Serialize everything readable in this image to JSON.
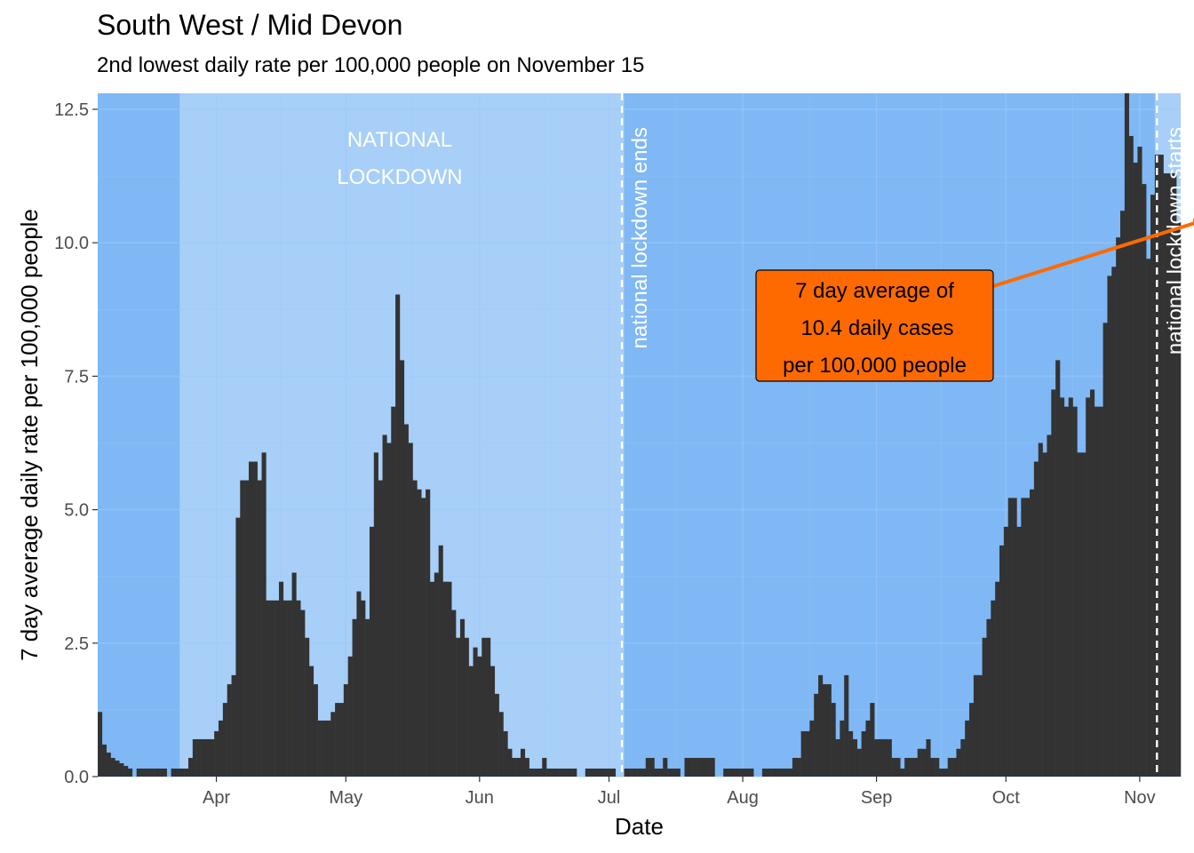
{
  "chart_data": {
    "type": "bar",
    "title": "South West / Mid Devon",
    "subtitle": "2nd lowest daily rate per 100,000 people on November 15",
    "xlabel": "Date",
    "ylabel": "7 day average daily rate per 100,000 people",
    "x_start": "2020-03-05",
    "ylim": [
      0,
      12.8
    ],
    "y_ticks": [
      {
        "value": 0,
        "label": "0.0"
      },
      {
        "value": 2.5,
        "label": "2.5"
      },
      {
        "value": 5,
        "label": "5.0"
      },
      {
        "value": 7.5,
        "label": "7.5"
      },
      {
        "value": 10,
        "label": "10.0"
      },
      {
        "value": 12.5,
        "label": "12.5"
      }
    ],
    "x_ticks": [
      {
        "date": "2020-04-01",
        "label": "Apr"
      },
      {
        "date": "2020-05-01",
        "label": "May"
      },
      {
        "date": "2020-06-01",
        "label": "Jun"
      },
      {
        "date": "2020-07-01",
        "label": "Jul"
      },
      {
        "date": "2020-08-01",
        "label": "Aug"
      },
      {
        "date": "2020-09-01",
        "label": "Sep"
      },
      {
        "date": "2020-10-01",
        "label": "Oct"
      },
      {
        "date": "2020-11-01",
        "label": "Nov"
      }
    ],
    "values": [
      1.21,
      0.6,
      0.45,
      0.35,
      0.3,
      0.25,
      0.2,
      0.15,
      0.0,
      0.15,
      0.15,
      0.15,
      0.15,
      0.15,
      0.15,
      0.15,
      0.0,
      0.15,
      0.15,
      0.15,
      0.15,
      0.35,
      0.7,
      0.7,
      0.7,
      0.7,
      0.7,
      0.85,
      1.05,
      1.38,
      1.73,
      1.9,
      4.85,
      5.55,
      5.55,
      5.9,
      5.9,
      5.55,
      6.07,
      3.3,
      3.3,
      3.3,
      3.65,
      3.3,
      3.3,
      3.82,
      3.3,
      3.12,
      2.6,
      2.07,
      1.73,
      1.05,
      1.05,
      1.05,
      1.21,
      1.38,
      1.38,
      1.73,
      2.25,
      2.95,
      3.47,
      3.3,
      2.95,
      4.68,
      6.07,
      5.55,
      6.4,
      6.25,
      6.93,
      9.03,
      7.8,
      6.6,
      6.25,
      5.55,
      5.38,
      5.22,
      5.38,
      3.65,
      3.82,
      4.33,
      3.65,
      3.65,
      3.12,
      2.6,
      2.95,
      2.6,
      2.07,
      2.42,
      2.25,
      2.6,
      2.6,
      2.07,
      1.55,
      1.21,
      0.85,
      0.52,
      0.35,
      0.35,
      0.52,
      0.35,
      0.15,
      0.15,
      0.15,
      0.35,
      0.15,
      0.15,
      0.15,
      0.15,
      0.15,
      0.15,
      0.15,
      0.0,
      0.0,
      0.15,
      0.15,
      0.15,
      0.15,
      0.15,
      0.15,
      0.15,
      0.0,
      0.0,
      0.15,
      0.15,
      0.15,
      0.15,
      0.15,
      0.35,
      0.35,
      0.15,
      0.15,
      0.35,
      0.15,
      0.15,
      0.15,
      0.0,
      0.35,
      0.35,
      0.35,
      0.35,
      0.35,
      0.35,
      0.35,
      0.0,
      0.0,
      0.15,
      0.15,
      0.15,
      0.15,
      0.15,
      0.15,
      0.15,
      0.0,
      0.0,
      0.15,
      0.15,
      0.15,
      0.15,
      0.15,
      0.15,
      0.15,
      0.35,
      0.35,
      0.85,
      0.85,
      1.05,
      1.55,
      1.9,
      1.73,
      1.73,
      1.38,
      0.7,
      1.05,
      1.9,
      0.85,
      0.7,
      0.52,
      0.85,
      1.05,
      1.38,
      0.7,
      0.7,
      0.7,
      0.7,
      0.35,
      0.35,
      0.15,
      0.35,
      0.35,
      0.35,
      0.52,
      0.52,
      0.7,
      0.35,
      0.35,
      0.15,
      0.15,
      0.35,
      0.35,
      0.52,
      0.7,
      1.05,
      1.38,
      1.9,
      1.9,
      2.6,
      2.95,
      3.3,
      3.65,
      4.33,
      4.68,
      5.22,
      5.22,
      4.68,
      5.22,
      5.22,
      5.38,
      5.9,
      6.25,
      6.07,
      6.4,
      7.25,
      7.8,
      7.1,
      6.93,
      7.1,
      6.93,
      6.07,
      6.07,
      7.1,
      7.25,
      6.93,
      6.93,
      8.5,
      9.38,
      9.55,
      10.1,
      10.6,
      12.9,
      12.0,
      11.5,
      11.8,
      11.1,
      9.7,
      10.9,
      11.65,
      11.65,
      11.3,
      11.3,
      11.3,
      10.4
    ],
    "reference_lines": [
      {
        "date": "2020-07-04",
        "label": "national lockdown ends"
      },
      {
        "date": "2020-11-05",
        "label": "national lockdown starts"
      }
    ],
    "shaded_periods": [
      {
        "start": "2020-03-24",
        "end": "2020-07-04",
        "label_line1": "NATIONAL",
        "label_line2": "LOCKDOWN"
      },
      {
        "start": "2020-11-05",
        "end": "2020-11-15",
        "label_line1": "",
        "label_line2": ""
      }
    ],
    "callout": {
      "date": "2020-11-15",
      "value": 10.4,
      "line1": "7 day average of",
      "line2": "10.4 daily cases",
      "line3": "per 100,000 people"
    },
    "colors": {
      "background": "#7fb8f5",
      "lockdown_band": "#a7cff8",
      "bars": "#333333",
      "callout": "#ff6a00",
      "reference_line": "#ffffff",
      "grid": "#9ec8f7"
    }
  }
}
